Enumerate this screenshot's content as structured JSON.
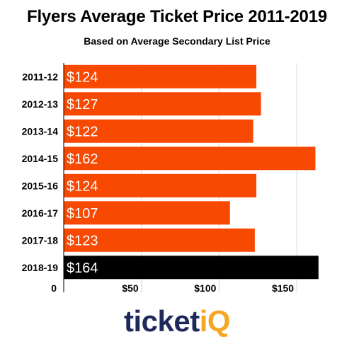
{
  "chart_data": {
    "type": "bar",
    "orientation": "horizontal",
    "title": "Flyers Average Ticket Price 2011-2019",
    "subtitle": "Based on Average Secondary List Price",
    "categories": [
      "2011-12",
      "2012-13",
      "2013-14",
      "2014-15",
      "2015-16",
      "2016-17",
      "2017-18",
      "2018-19"
    ],
    "values": [
      124,
      127,
      122,
      162,
      124,
      107,
      123,
      164
    ],
    "value_labels": [
      "$124",
      "$127",
      "$122",
      "$162",
      "$124",
      "$107",
      "$123",
      "$164"
    ],
    "x_ticks": [
      0,
      50,
      100,
      150
    ],
    "x_tick_labels": [
      "0",
      "$50",
      "$100",
      "$150"
    ],
    "xlim": [
      0,
      170
    ],
    "grid": "vertical",
    "colors": {
      "bar": "#f74902",
      "highlight_bar": "#000000",
      "value_label": "#ffffff",
      "grid": "#d9d9d9"
    },
    "highlight_index": 7
  },
  "logo": {
    "part1": "ticket",
    "part2": "iQ",
    "color1": "#1e2a5a",
    "color2": "#f5a623"
  }
}
